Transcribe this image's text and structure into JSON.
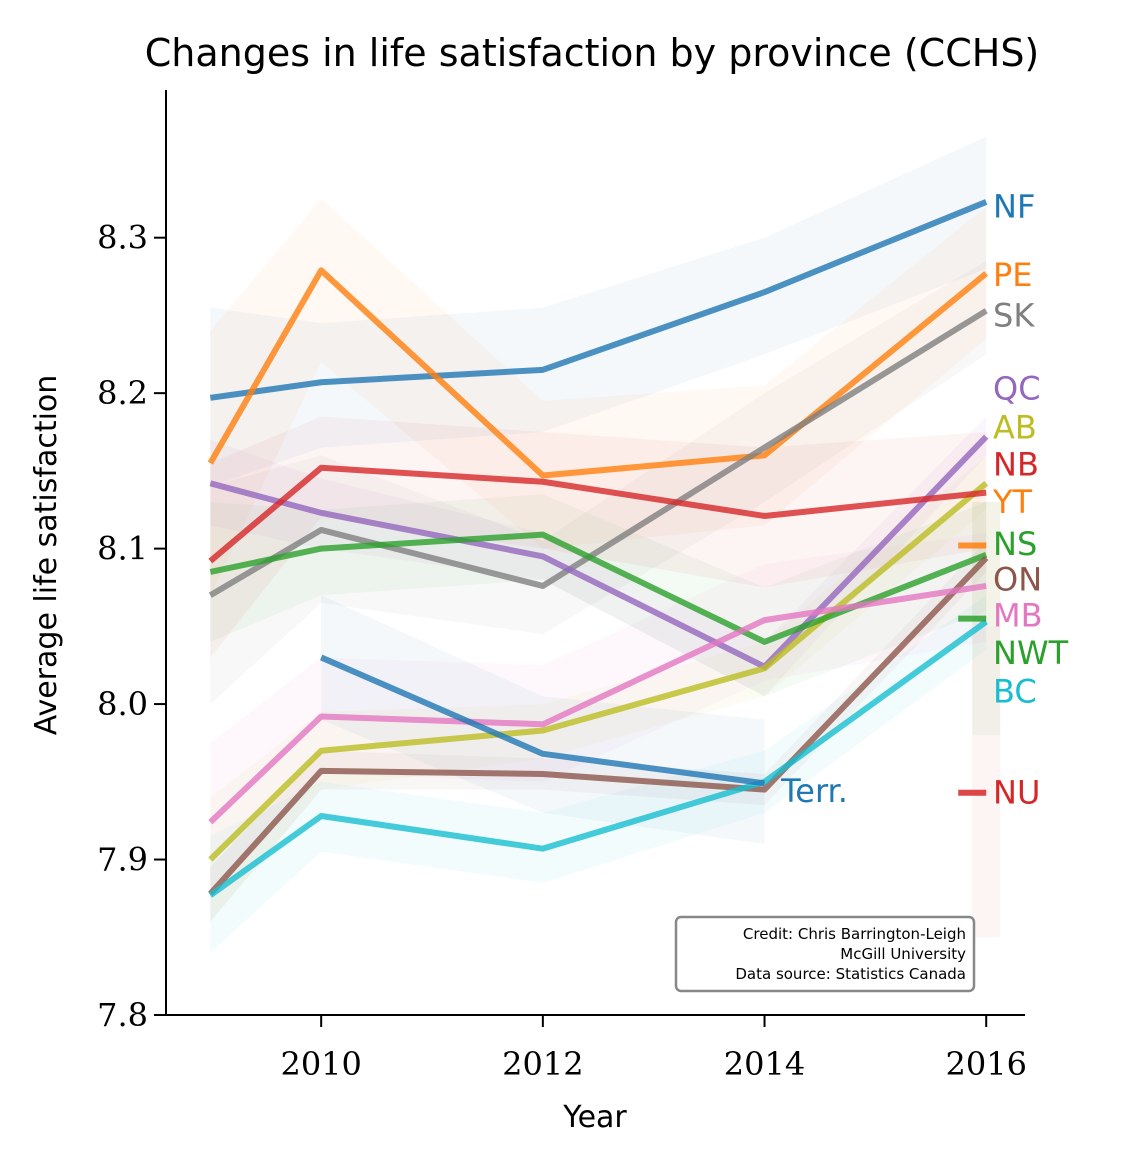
{
  "chart_data": {
    "type": "line",
    "title": "Changes in life satisfaction by province (CCHS)",
    "xlabel": "Year",
    "ylabel": "Average life satisfaction",
    "xlim": [
      2008.6,
      2016.35
    ],
    "ylim": [
      7.8,
      8.395
    ],
    "x_ticks": [
      2010,
      2012,
      2014,
      2016
    ],
    "y_ticks": [
      7.8,
      7.9,
      8.0,
      8.1,
      8.2,
      8.3
    ],
    "x_tick_labels": [
      "2010",
      "2012",
      "2014",
      "2016"
    ],
    "y_tick_labels": [
      "7.8",
      "7.9",
      "8.0",
      "8.1",
      "8.2",
      "8.3"
    ],
    "grid": false,
    "series": [
      {
        "name": "NF",
        "color": "#1f77b4",
        "x": [
          2009,
          2010,
          2012,
          2014,
          2016
        ],
        "y": [
          8.197,
          8.207,
          8.215,
          8.265,
          8.323
        ],
        "lower": [
          8.14,
          8.165,
          8.175,
          8.225,
          8.28
        ],
        "upper": [
          8.255,
          8.245,
          8.255,
          8.3,
          8.365
        ],
        "label_y": 8.32
      },
      {
        "name": "PE",
        "color": "#ff7f0e",
        "x": [
          2009,
          2010,
          2012,
          2014,
          2016
        ],
        "y": [
          8.155,
          8.279,
          8.147,
          8.16,
          8.277
        ],
        "lower": [
          8.07,
          8.22,
          8.1,
          8.115,
          8.235
        ],
        "upper": [
          8.24,
          8.325,
          8.195,
          8.205,
          8.32
        ],
        "label_y": 8.276
      },
      {
        "name": "SK",
        "color": "#7f7f7f",
        "x": [
          2009,
          2010,
          2012,
          2014,
          2016
        ],
        "y": [
          8.07,
          8.112,
          8.076,
          8.165,
          8.253
        ],
        "lower": [
          8.0,
          8.065,
          8.045,
          8.13,
          8.225
        ],
        "upper": [
          8.14,
          8.16,
          8.105,
          8.2,
          8.285
        ],
        "label_y": 8.25
      },
      {
        "name": "QC",
        "color": "#9467bd",
        "x": [
          2009,
          2010,
          2012,
          2014,
          2016
        ],
        "y": [
          8.142,
          8.123,
          8.095,
          8.024,
          8.172
        ],
        "lower": [
          8.115,
          8.1,
          8.08,
          8.005,
          8.16
        ],
        "upper": [
          8.17,
          8.145,
          8.11,
          8.04,
          8.185
        ],
        "label_y": 8.203
      },
      {
        "name": "AB",
        "color": "#bcbd22",
        "x": [
          2009,
          2010,
          2012,
          2014,
          2016
        ],
        "y": [
          7.9,
          7.97,
          7.983,
          8.023,
          8.142
        ],
        "lower": [
          7.86,
          7.945,
          7.965,
          8.005,
          8.125
        ],
        "upper": [
          7.94,
          7.995,
          8.0,
          8.04,
          8.16
        ],
        "label_y": 8.178
      },
      {
        "name": "NB",
        "color": "#d62728",
        "x": [
          2009,
          2010,
          2012,
          2014,
          2016
        ],
        "y": [
          8.092,
          8.152,
          8.143,
          8.121,
          8.136
        ],
        "lower": [
          8.03,
          8.12,
          8.1,
          8.075,
          8.1
        ],
        "upper": [
          8.155,
          8.185,
          8.175,
          8.165,
          8.175
        ],
        "label_y": 8.154
      },
      {
        "name": "YT",
        "color": "#ff7f0e",
        "x": [],
        "y": [],
        "marker_y": 8.102,
        "marker_lower": 8.05,
        "marker_upper": 8.13,
        "label_y": 8.13
      },
      {
        "name": "NS",
        "color": "#2ca02c",
        "x": [
          2009,
          2010,
          2012,
          2014,
          2016
        ],
        "y": [
          8.085,
          8.1,
          8.109,
          8.04,
          8.096
        ],
        "lower": [
          8.04,
          8.07,
          8.08,
          8.005,
          8.06
        ],
        "upper": [
          8.13,
          8.125,
          8.135,
          8.075,
          8.13
        ],
        "label_y": 8.103
      },
      {
        "name": "ON",
        "color": "#8c564b",
        "x": [
          2009,
          2010,
          2012,
          2014,
          2016
        ],
        "y": [
          7.878,
          7.957,
          7.955,
          7.945,
          8.094
        ],
        "lower": [
          7.86,
          7.945,
          7.945,
          7.935,
          8.085
        ],
        "upper": [
          7.895,
          7.97,
          7.965,
          7.955,
          8.105
        ],
        "label_y": 8.08
      },
      {
        "name": "MB",
        "color": "#e377c2",
        "x": [
          2009,
          2010,
          2012,
          2014,
          2016
        ],
        "y": [
          7.924,
          7.992,
          7.987,
          8.054,
          8.076
        ],
        "lower": [
          7.875,
          7.955,
          7.95,
          8.015,
          8.04
        ],
        "upper": [
          7.975,
          8.03,
          8.025,
          8.09,
          8.11
        ],
        "label_y": 8.057
      },
      {
        "name": "NWT",
        "color": "#2ca02c",
        "x": [],
        "y": [],
        "marker_y": 8.055,
        "marker_lower": 7.98,
        "marker_upper": 8.13,
        "label_y": 8.033
      },
      {
        "name": "BC",
        "color": "#17becf",
        "x": [
          2009,
          2010,
          2012,
          2014,
          2016
        ],
        "y": [
          7.877,
          7.928,
          7.907,
          7.95,
          8.053
        ],
        "lower": [
          7.84,
          7.905,
          7.885,
          7.93,
          8.035
        ],
        "upper": [
          7.915,
          7.95,
          7.93,
          7.97,
          8.07
        ],
        "label_y": 8.008
      },
      {
        "name": "NU",
        "color": "#d62728",
        "x": [],
        "y": [],
        "marker_y": 7.943,
        "marker_lower": 7.85,
        "marker_upper": 8.05,
        "label_y": 7.943
      },
      {
        "name": "Terr.",
        "color": "#1f77b4",
        "x": [
          2010,
          2012,
          2014
        ],
        "y": [
          8.03,
          7.968,
          7.949
        ],
        "lower": [
          7.99,
          7.93,
          7.91
        ],
        "upper": [
          8.07,
          8.005,
          7.99
        ],
        "label_x": 2014.15,
        "label_y": 7.944
      }
    ],
    "annotation": {
      "lines": [
        "Credit: Chris Barrington-Leigh",
        "McGill University",
        "Data source: Statistics Canada"
      ]
    }
  }
}
